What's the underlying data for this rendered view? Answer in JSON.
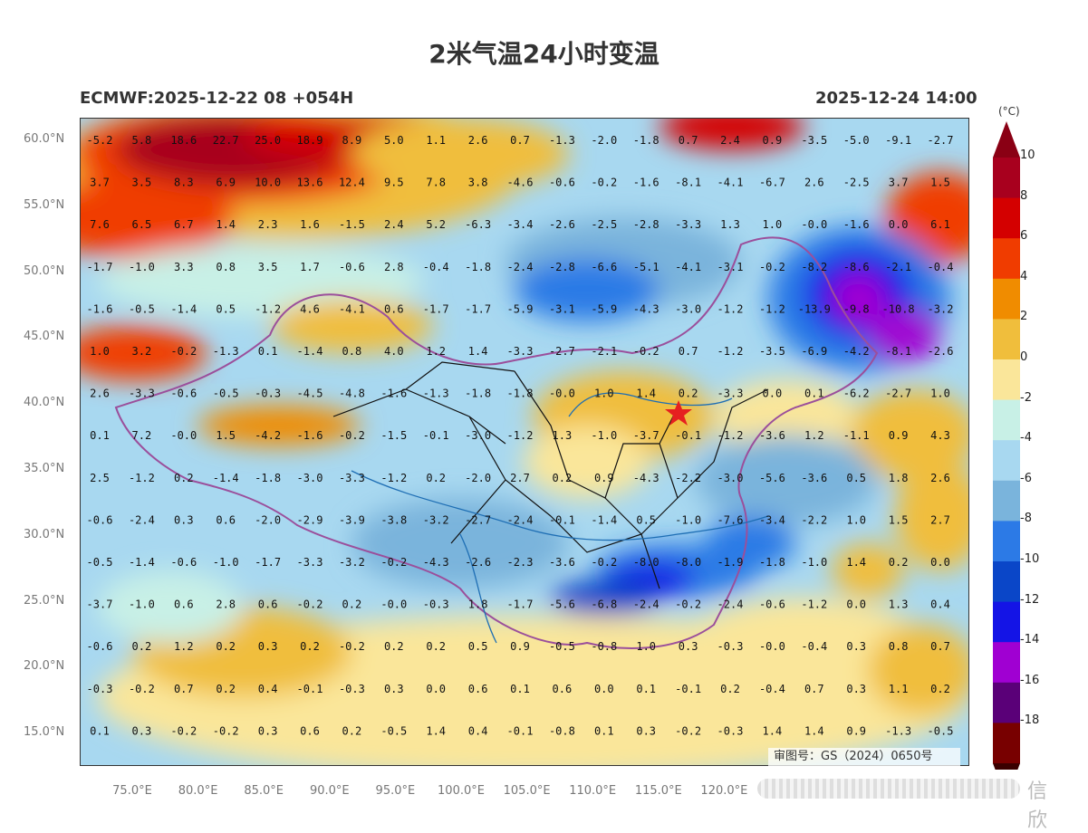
{
  "header": {
    "title": "2米气温24小时变温",
    "model_run": "ECMWF:2025-12-22 08 +054H",
    "valid_time": "2025-12-24 14:00"
  },
  "axes": {
    "lat_labels": [
      "60.0°N",
      "55.0°N",
      "50.0°N",
      "45.0°N",
      "40.0°N",
      "35.0°N",
      "30.0°N",
      "25.0°N",
      "20.0°N",
      "15.0°N"
    ],
    "lon_labels": [
      "75.0°E",
      "80.0°E",
      "85.0°E",
      "90.0°E",
      "95.0°E",
      "100.0°E",
      "105.0°E",
      "110.0°E",
      "115.0°E",
      "120.0°E"
    ]
  },
  "colorbar": {
    "unit": "(°C)",
    "ticks": [
      "10",
      "8",
      "6",
      "4",
      "2",
      "0",
      "-2",
      "-4",
      "-6",
      "-8",
      "-10",
      "-12",
      "-14",
      "-16",
      "-18"
    ],
    "colors": [
      "#a8001e",
      "#d40000",
      "#f03c00",
      "#f08c00",
      "#f0be3c",
      "#fae69a",
      "#c8f0e6",
      "#a8d8f0",
      "#7ab4dc",
      "#2c7ae6",
      "#0a46c8",
      "#1414e6",
      "#a000d2",
      "#5a0078",
      "#780000"
    ]
  },
  "approval_number": "审图号：GS（2024）0650号",
  "watermark": "信欣",
  "grid_values": [
    [
      "-5.2",
      "5.8",
      "18.6",
      "22.7",
      "25.0",
      "18.9",
      "8.9",
      "5.0",
      "1.1",
      "2.6",
      "0.7",
      "-1.3",
      "-2.0",
      "-1.8",
      "0.7",
      "2.4",
      "0.9",
      "-3.5",
      "-5.0",
      "-9.1",
      "-2.7"
    ],
    [
      "3.7",
      "3.5",
      "8.3",
      "6.9",
      "10.0",
      "13.6",
      "12.4",
      "9.5",
      "7.8",
      "3.8",
      "-4.6",
      "-0.6",
      "-0.2",
      "-1.6",
      "-8.1",
      "-4.1",
      "-6.7",
      "2.6",
      "-2.5",
      "3.7",
      "1.5"
    ],
    [
      "7.6",
      "6.5",
      "6.7",
      "1.4",
      "2.3",
      "1.6",
      "-1.5",
      "2.4",
      "5.2",
      "-6.3",
      "-3.4",
      "-2.6",
      "-2.5",
      "-2.8",
      "-3.3",
      "1.3",
      "1.0",
      "-0.0",
      "-1.6",
      "0.0",
      "6.1"
    ],
    [
      "-1.7",
      "-1.0",
      "3.3",
      "0.8",
      "3.5",
      "1.7",
      "-0.6",
      "2.8",
      "-0.4",
      "-1.8",
      "-2.4",
      "-2.8",
      "-6.6",
      "-5.1",
      "-4.1",
      "-3.1",
      "-0.2",
      "-8.2",
      "-8.6",
      "-2.1",
      "-0.4"
    ],
    [
      "-1.6",
      "-0.5",
      "-1.4",
      "0.5",
      "-1.2",
      "4.6",
      "-4.1",
      "0.6",
      "-1.7",
      "-1.7",
      "-5.9",
      "-3.1",
      "-5.9",
      "-4.3",
      "-3.0",
      "-1.2",
      "-1.2",
      "-13.9",
      "-9.8",
      "-10.8",
      "-3.2"
    ],
    [
      "1.0",
      "3.2",
      "-0.2",
      "-1.3",
      "0.1",
      "-1.4",
      "0.8",
      "4.0",
      "1.2",
      "1.4",
      "-3.3",
      "-2.7",
      "-2.1",
      "-0.2",
      "0.7",
      "-1.2",
      "-3.5",
      "-6.9",
      "-4.2",
      "-8.1",
      "-2.6"
    ],
    [
      "2.6",
      "-3.3",
      "-0.6",
      "-0.5",
      "-0.3",
      "-4.5",
      "-4.8",
      "-1.6",
      "-1.3",
      "-1.8",
      "-1.8",
      "-0.0",
      "1.0",
      "1.4",
      "0.2",
      "-3.3",
      "0.0",
      "0.1",
      "-6.2",
      "-2.7",
      "1.0"
    ],
    [
      "0.1",
      "7.2",
      "-0.0",
      "1.5",
      "-4.2",
      "-1.6",
      "-0.2",
      "-1.5",
      "-0.1",
      "-3.0",
      "-1.2",
      "1.3",
      "-1.0",
      "-3.7",
      "-0.1",
      "-1.2",
      "-3.6",
      "1.2",
      "-1.1",
      "0.9",
      "4.3"
    ],
    [
      "2.5",
      "-1.2",
      "0.2",
      "-1.4",
      "-1.8",
      "-3.0",
      "-3.3",
      "-1.2",
      "0.2",
      "-2.0",
      "2.7",
      "0.2",
      "0.9",
      "-4.3",
      "-2.2",
      "-3.0",
      "-5.6",
      "-3.6",
      "0.5",
      "1.8",
      "2.6"
    ],
    [
      "-0.6",
      "-2.4",
      "0.3",
      "0.6",
      "-2.0",
      "-2.9",
      "-3.9",
      "-3.8",
      "-3.2",
      "-2.7",
      "-2.4",
      "-0.1",
      "-1.4",
      "0.5",
      "-1.0",
      "-7.6",
      "-3.4",
      "-2.2",
      "1.0",
      "1.5",
      "2.7"
    ],
    [
      "-0.5",
      "-1.4",
      "-0.6",
      "-1.0",
      "-1.7",
      "-3.3",
      "-3.2",
      "-0.2",
      "-4.3",
      "-2.6",
      "-2.3",
      "-3.6",
      "-0.2",
      "-8.0",
      "-8.0",
      "-1.9",
      "-1.8",
      "-1.0",
      "1.4",
      "0.2",
      "0.0"
    ],
    [
      "-3.7",
      "-1.0",
      "0.6",
      "2.8",
      "0.6",
      "-0.2",
      "0.2",
      "-0.0",
      "-0.3",
      "1.8",
      "-1.7",
      "-5.6",
      "-6.8",
      "-2.4",
      "-0.2",
      "-2.4",
      "-0.6",
      "-1.2",
      "0.0",
      "1.3",
      "0.4"
    ],
    [
      "-0.6",
      "0.2",
      "1.2",
      "0.2",
      "0.3",
      "0.2",
      "-0.2",
      "0.2",
      "0.2",
      "0.5",
      "0.9",
      "-0.5",
      "-0.8",
      "1.0",
      "0.3",
      "-0.3",
      "-0.0",
      "-0.4",
      "0.3",
      "0.8",
      "0.7"
    ],
    [
      "-0.3",
      "-0.2",
      "0.7",
      "0.2",
      "0.4",
      "-0.1",
      "-0.3",
      "0.3",
      "0.0",
      "0.6",
      "0.1",
      "0.6",
      "0.0",
      "0.1",
      "-0.1",
      "0.2",
      "-0.4",
      "0.7",
      "0.3",
      "1.1",
      "0.2"
    ],
    [
      "0.1",
      "0.3",
      "-0.2",
      "-0.2",
      "0.3",
      "0.6",
      "0.2",
      "-0.5",
      "1.4",
      "0.4",
      "-0.1",
      "-0.8",
      "0.1",
      "0.3",
      "-0.2",
      "-0.3",
      "1.4",
      "1.4",
      "0.9",
      "-1.3",
      "-0.5"
    ]
  ]
}
